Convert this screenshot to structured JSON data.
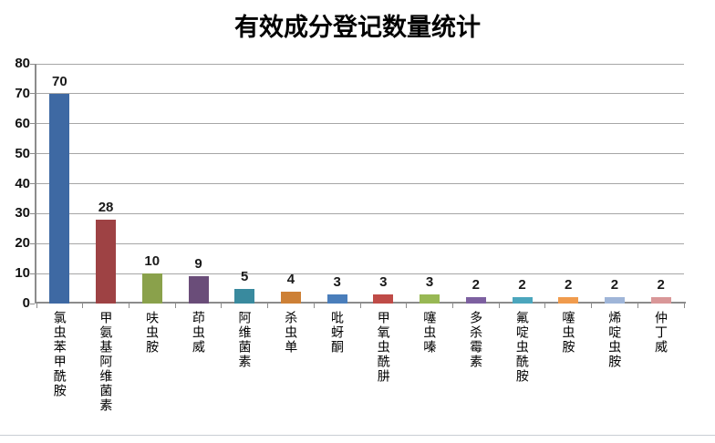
{
  "chart_data": {
    "type": "bar",
    "title": "有效成分登记数量统计",
    "categories": [
      "氯虫苯甲酰胺",
      "甲氨基阿维菌素",
      "呋虫胺",
      "茚虫威",
      "阿维菌素",
      "杀虫单",
      "吡蚜酮",
      "甲氧虫酰肼",
      "噻虫嗪",
      "多杀霉素",
      "氟啶虫酰胺",
      "噻虫胺",
      "烯啶虫胺",
      "仲丁威"
    ],
    "values": [
      70,
      28,
      10,
      9,
      5,
      4,
      3,
      3,
      3,
      2,
      2,
      2,
      2,
      2
    ],
    "bar_colors": [
      "#3e69a3",
      "#9e4244",
      "#8aa14b",
      "#6a4d79",
      "#398a9e",
      "#cd8036",
      "#4a7ebb",
      "#bf4b47",
      "#98b854",
      "#7d60a0",
      "#4ba6bd",
      "#f09b4d",
      "#9fb5d8",
      "#d99798"
    ],
    "xlabel": "",
    "ylabel": "",
    "ylim": [
      0,
      80
    ],
    "yticks": [
      0,
      10,
      20,
      30,
      40,
      50,
      60,
      70,
      80
    ],
    "grid": "horizontal gridlines on",
    "legend_position": "none",
    "data_labels": "above bars",
    "gridline_color": "#a6a6a6",
    "axis_color": "#8c8c8c",
    "value_label_color": "#1a1a1a"
  },
  "page": {
    "background": "#ffffff",
    "divider_color": "#c9ced4"
  }
}
